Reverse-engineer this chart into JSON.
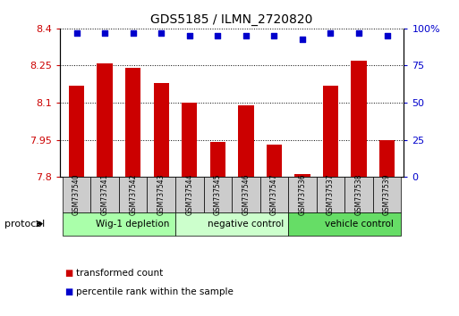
{
  "title": "GDS5185 / ILMN_2720820",
  "samples": [
    "GSM737540",
    "GSM737541",
    "GSM737542",
    "GSM737543",
    "GSM737544",
    "GSM737545",
    "GSM737546",
    "GSM737547",
    "GSM737536",
    "GSM737537",
    "GSM737538",
    "GSM737539"
  ],
  "transformed_counts": [
    8.17,
    8.26,
    8.24,
    8.18,
    8.1,
    7.94,
    8.09,
    7.93,
    7.81,
    8.17,
    8.27,
    7.95
  ],
  "percentile_ranks": [
    97,
    97,
    97,
    97,
    95,
    95,
    95,
    95,
    93,
    97,
    97,
    95
  ],
  "ylim_left": [
    7.8,
    8.4
  ],
  "ylim_right": [
    0,
    100
  ],
  "yticks_left": [
    7.8,
    7.95,
    8.1,
    8.25,
    8.4
  ],
  "ytick_labels_left": [
    "7.8",
    "7.95",
    "8.1",
    "8.25",
    "8.4"
  ],
  "yticks_right": [
    0,
    25,
    50,
    75,
    100
  ],
  "ytick_labels_right": [
    "0",
    "25",
    "50",
    "75",
    "100%"
  ],
  "bar_color": "#cc0000",
  "dot_color": "#0000cc",
  "bar_bottom": 7.8,
  "groups": [
    {
      "label": "Wig-1 depletion",
      "start": 0,
      "end": 4,
      "color": "#aaffaa"
    },
    {
      "label": "negative control",
      "start": 4,
      "end": 8,
      "color": "#ccffcc"
    },
    {
      "label": "vehicle control",
      "start": 8,
      "end": 12,
      "color": "#66dd66"
    }
  ],
  "protocol_label": "protocol",
  "legend_items": [
    {
      "color": "#cc0000",
      "label": "transformed count"
    },
    {
      "color": "#0000cc",
      "label": "percentile rank within the sample"
    }
  ],
  "background_color": "#ffffff",
  "sample_box_color": "#cccccc",
  "group_box_border": "#000000"
}
